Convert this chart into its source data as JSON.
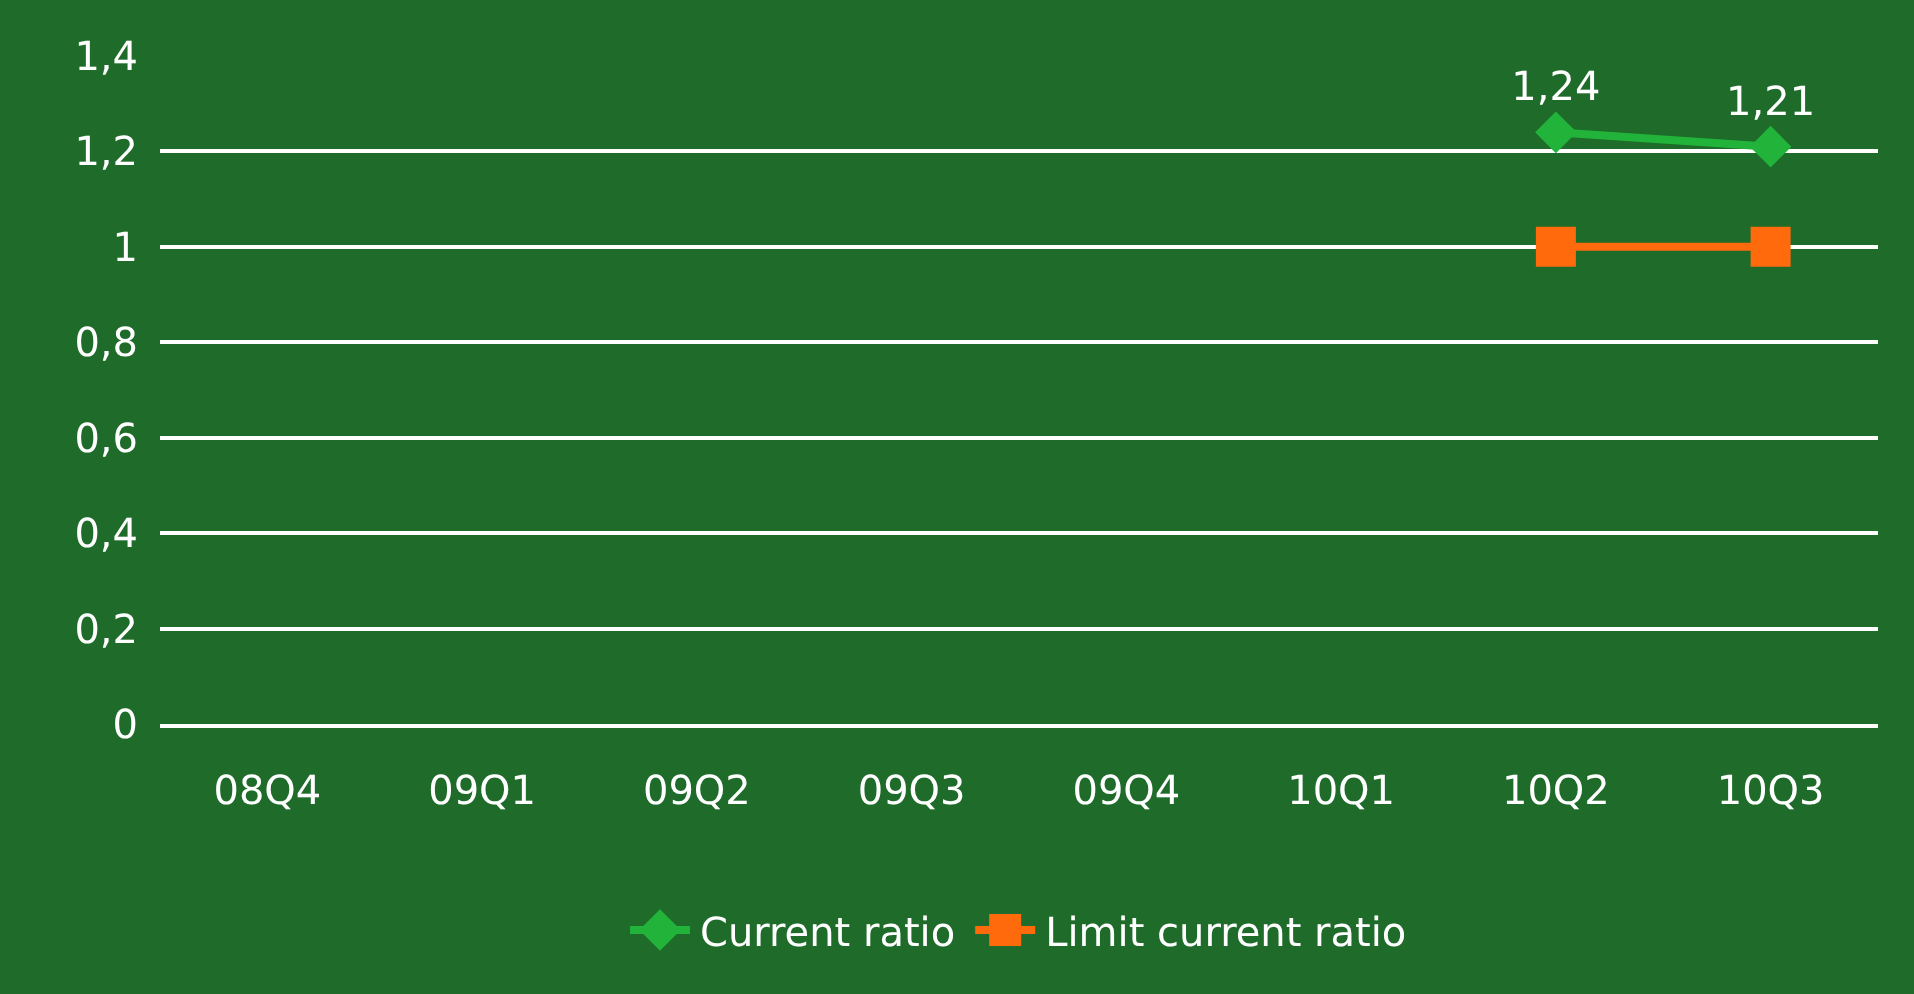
{
  "chart_data": {
    "type": "line",
    "categories": [
      "08Q4",
      "09Q1",
      "09Q2",
      "09Q3",
      "09Q4",
      "10Q1",
      "10Q2",
      "10Q3"
    ],
    "series": [
      {
        "name": "Current ratio",
        "color": "#22b33a",
        "marker": "diamond",
        "values": [
          null,
          null,
          null,
          null,
          null,
          null,
          1.24,
          1.21
        ],
        "value_labels": [
          null,
          null,
          null,
          null,
          null,
          null,
          "1,24",
          "1,21"
        ]
      },
      {
        "name": "Limit current ratio",
        "color": "#ff6a0d",
        "marker": "square",
        "values": [
          null,
          null,
          null,
          null,
          null,
          null,
          1,
          1
        ]
      }
    ],
    "ylim": [
      0,
      1.4
    ],
    "yticks": [
      0,
      {
        "value": 0.2,
        "label": "0,2"
      },
      {
        "value": 0.4,
        "label": "0,4"
      },
      {
        "value": 0.6,
        "label": "0,6"
      },
      {
        "value": 0.8,
        "label": "0,8"
      },
      1,
      {
        "value": 1.2,
        "label": "1,2"
      },
      {
        "value": 1.4,
        "label": "1,4"
      }
    ],
    "grid": "y",
    "legend": "bottom",
    "line_style": "solid"
  }
}
